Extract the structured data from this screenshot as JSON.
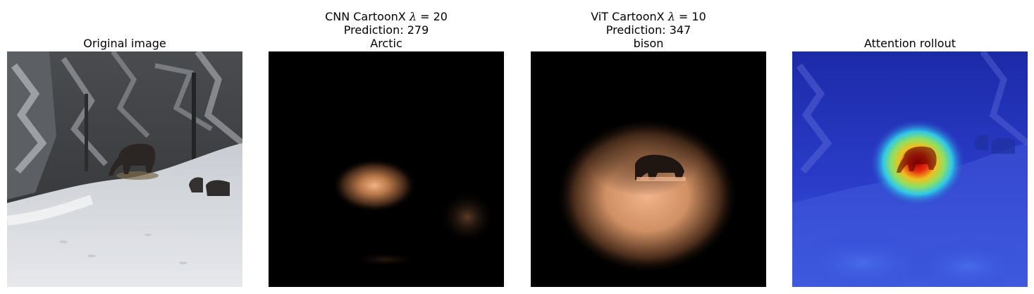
{
  "panels": [
    {
      "id": "original",
      "title_lines": [
        "Original image"
      ]
    },
    {
      "id": "cnn",
      "title_line1_prefix": "CNN CartoonX ",
      "title_line1_symbol": "λ",
      "title_line1_suffix": " = 20",
      "title_line2": "Prediction: 279",
      "title_line3": "Arctic"
    },
    {
      "id": "vit",
      "title_line1_prefix": "ViT CartoonX ",
      "title_line1_symbol": "λ",
      "title_line1_suffix": " = 10",
      "title_line2": "Prediction: 347",
      "title_line3": "bison"
    },
    {
      "id": "rollout",
      "title_lines": [
        "Attention rollout"
      ]
    }
  ],
  "colors": {
    "snow": "#e4e6ea",
    "forest": "#3a3c3e",
    "mask_glow": "#f0a878",
    "rollout_base": "#2a3cc8",
    "rollout_hot": "#b80a0a"
  }
}
